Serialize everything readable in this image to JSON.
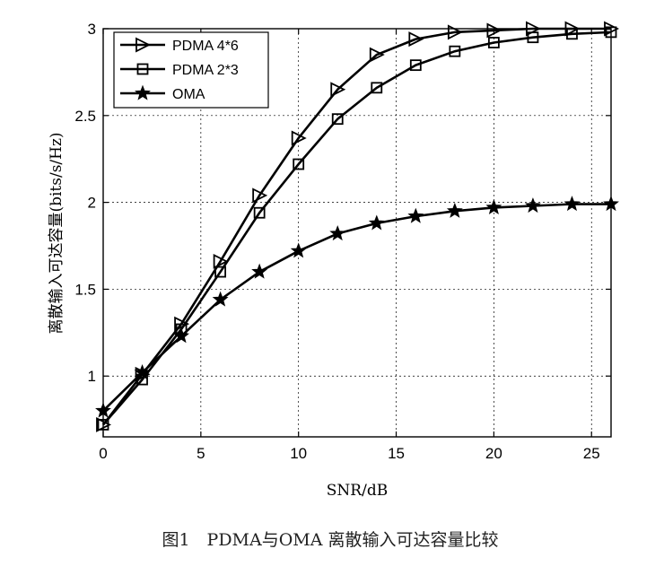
{
  "chart_data": {
    "type": "line",
    "xlabel": "SNR/dB",
    "ylabel": "离散输入可达容量(bits/s/Hz)",
    "xlim": [
      0,
      26
    ],
    "ylim": [
      0.65,
      3
    ],
    "xticks": [
      0,
      5,
      10,
      15,
      20,
      25
    ],
    "yticks": [
      1,
      1.5,
      2,
      2.5,
      3
    ],
    "grid": true,
    "legend_position": "top-left",
    "series": [
      {
        "name": "PDMA 4*6",
        "marker": "triangle-right",
        "x": [
          0,
          2,
          4,
          6,
          8,
          10,
          12,
          14,
          16,
          18,
          20,
          22,
          24,
          26
        ],
        "y": [
          0.72,
          1.01,
          1.3,
          1.66,
          2.04,
          2.37,
          2.65,
          2.85,
          2.94,
          2.98,
          2.99,
          3.0,
          3.0,
          3.0
        ]
      },
      {
        "name": "PDMA 2*3",
        "marker": "square",
        "x": [
          0,
          2,
          4,
          6,
          8,
          10,
          12,
          14,
          16,
          18,
          20,
          22,
          24,
          26
        ],
        "y": [
          0.72,
          0.98,
          1.27,
          1.6,
          1.94,
          2.22,
          2.48,
          2.66,
          2.79,
          2.87,
          2.92,
          2.95,
          2.97,
          2.98
        ]
      },
      {
        "name": "OMA",
        "marker": "star",
        "x": [
          0,
          2,
          4,
          6,
          8,
          10,
          12,
          14,
          16,
          18,
          20,
          22,
          24,
          26
        ],
        "y": [
          0.8,
          1.02,
          1.23,
          1.44,
          1.6,
          1.72,
          1.82,
          1.88,
          1.92,
          1.95,
          1.97,
          1.98,
          1.99,
          1.99
        ]
      }
    ]
  },
  "caption": "图1　PDMA与OMA 离散输入可达容量比较"
}
